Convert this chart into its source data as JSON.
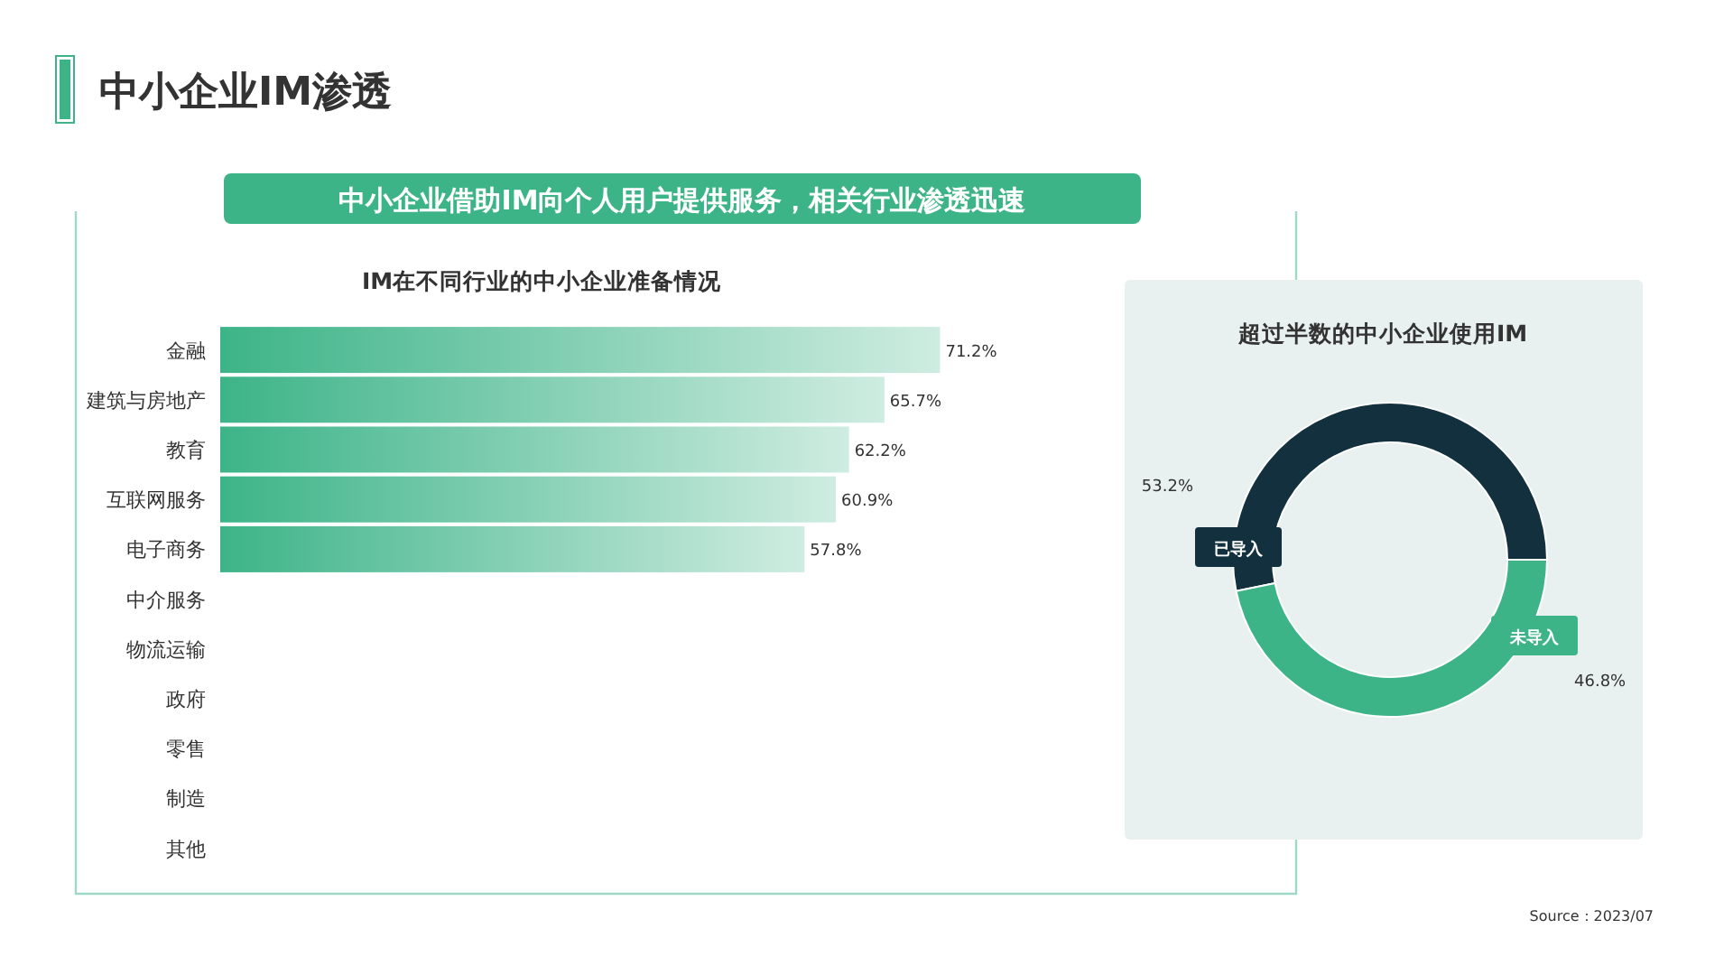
{
  "chart_data": [
    {
      "type": "other",
      "title": "中小企业IM渗透",
      "subtitle": "中小企业借助IM向个人用户提供服务，相关行业渗透迅速",
      "annotations": [
        "Source：2023/07"
      ]
    },
    {
      "type": "bar",
      "orientation": "horizontal",
      "relative": false,
      "title": "IM在不同行业的中小企业准备情况",
      "categories": [
        "金融",
        "建筑与房地产",
        "教育",
        "互联网服务",
        "电子商务",
        "中介服务",
        "物流运输",
        "政府",
        "零售",
        "制造",
        "其他"
      ],
      "values": [
        71.2,
        65.7,
        62.2,
        60.9,
        57.8,
        null,
        null,
        null,
        null,
        null,
        null
      ],
      "value_labels": [
        "71.2%",
        "65.7%",
        "62.2%",
        "60.9%",
        "57.8%",
        null,
        null,
        null,
        null,
        null,
        null
      ],
      "color": "#3db488"
    },
    {
      "type": "donut",
      "title": "超过半数的中小企业使用IM",
      "categories": [
        "已导入",
        "未导入"
      ],
      "values": [
        53.2,
        46.8
      ],
      "colors": [
        "#12303d",
        "#3db488"
      ],
      "value_labels": [
        "53.2%",
        "46.8%"
      ]
    }
  ]
}
